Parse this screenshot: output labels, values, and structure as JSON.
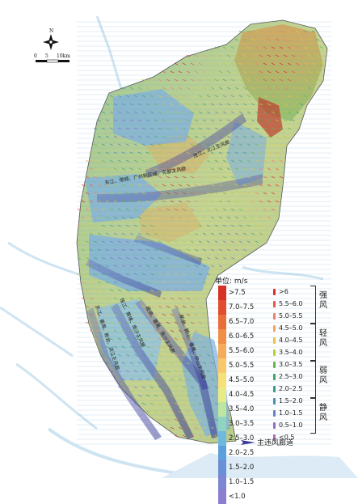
{
  "scale": {
    "labels": [
      "0",
      "5",
      "10km"
    ]
  },
  "compass": {
    "letter": "N"
  },
  "corridors": [
    "连江、北江主风廊",
    "东江、增城、广州新区域、花都主风廊",
    "东江、番禺、新会、滨江主风廊",
    "珠江、黄埔、南沙主风廊",
    "顺德、番禺、南沙主风廊",
    "新会、鹤山、番禺、中山主风廊"
  ],
  "legend": {
    "unit": "单位: m/s",
    "values": [
      "&gt;7.5",
      "7.0–7.5",
      "6.5–7.0",
      "6.0–6.5",
      "5.5–6.0",
      "5.0–5.5",
      "4.5–5.0",
      "4.0–4.5",
      "3.5–4.0",
      "3.0–3.5",
      "2.5–3.0",
      "2.0–2.5",
      "1.5–2.0",
      "1.0–1.5",
      "&lt;1.0"
    ],
    "value_colors": [
      "#d73027",
      "#e14d2e",
      "#ea6e3a",
      "#f08f48",
      "#f5ac5a",
      "#f8c86a",
      "#f6e07a",
      "#e9ec86",
      "#bfe6a0",
      "#8fd3c3",
      "#6fb8e0",
      "#5d9fdb",
      "#6a8fd6",
      "#7d86d2",
      "#8a7fcf"
    ],
    "directions": [
      "&gt;6",
      "5.5–6.0",
      "5.0–5.5",
      "4.5–5.0",
      "4.0–4.5",
      "3.5–4.0",
      "3.0–3.5",
      "2.5–3.0",
      "2.0–2.5",
      "1.5–2.0",
      "1.0–1.5",
      "0.5–1.0",
      "&lt;0.5"
    ],
    "direction_colors": [
      "#d73027",
      "#e8564a",
      "#ef7f6f",
      "#f2a35e",
      "#e9c34a",
      "#b7cd3a",
      "#66b84a",
      "#3fa66a",
      "#3b9b8a",
      "#4b8fb0",
      "#6b7fc6",
      "#8f6fc0",
      "#b06fb0"
    ],
    "grades": [
      "强风",
      "轻风",
      "弱风",
      "静风"
    ],
    "main_corridor": "主违风廊道"
  }
}
